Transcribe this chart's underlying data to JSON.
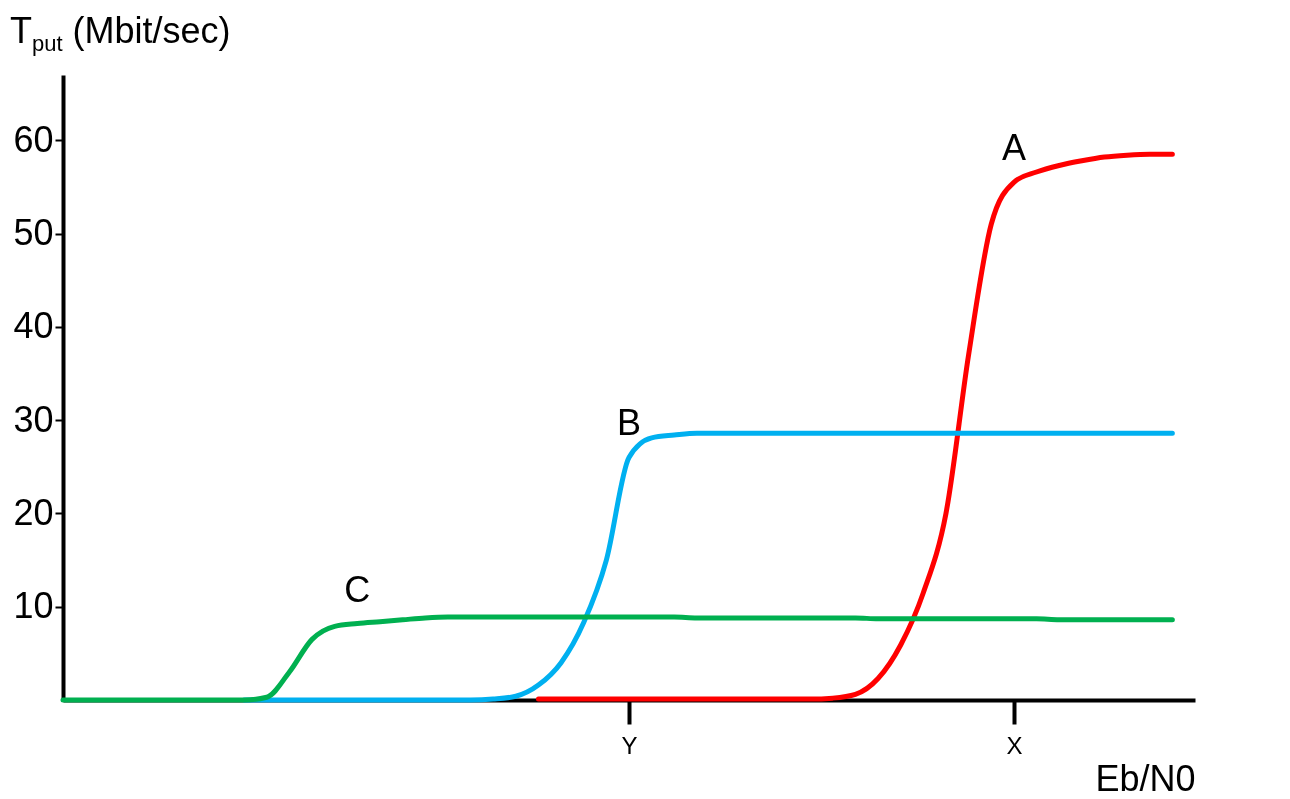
{
  "chart_data": {
    "type": "line",
    "xlabel": "Eb/N0",
    "ylabel": "T$_{put}$ (Mbit/sec)",
    "categories": [
      null,
      null,
      null,
      null,
      null,
      null,
      null,
      null,
      null,
      null,
      null,
      null,
      null,
      null,
      null,
      null,
      null,
      null,
      null,
      null,
      null,
      null,
      null,
      null,
      null,
      "Y",
      null,
      null,
      null,
      null,
      null,
      null,
      null,
      null,
      null,
      null,
      null,
      null,
      null,
      null,
      null,
      null,
      "X",
      null,
      null,
      null,
      null,
      null,
      null,
      null,
      null
    ],
    "ylim": [
      0,
      67
    ],
    "yticks": [
      10,
      20,
      30,
      40,
      50,
      60
    ],
    "grid": false,
    "legend": false,
    "marker": "none",
    "line_style": "solid",
    "series": [
      {
        "name": "A",
        "color": "#ff0000",
        "values": [
          null,
          null,
          null,
          null,
          null,
          null,
          null,
          null,
          null,
          null,
          null,
          null,
          null,
          null,
          null,
          null,
          null,
          null,
          null,
          null,
          null,
          0.1,
          0.1,
          0.1,
          0.1,
          0.1,
          0.1,
          0.1,
          0.1,
          0.1,
          0.1,
          0.1,
          0.1,
          0.1,
          0.2,
          0.6,
          2.3,
          5.9,
          11.5,
          20,
          37,
          51,
          55.5,
          56.6,
          57.3,
          57.8,
          58.2,
          58.4,
          58.5,
          58.5,
          null
        ]
      },
      {
        "name": "B",
        "color": "#00b0f0",
        "values": [
          null,
          null,
          null,
          null,
          null,
          null,
          null,
          null,
          0,
          0,
          0,
          0,
          0,
          0,
          0,
          0,
          0,
          0,
          0,
          0.1,
          0.4,
          1.6,
          4,
          8.3,
          15,
          26,
          28.1,
          28.4,
          28.6,
          28.6,
          28.6,
          28.6,
          28.6,
          28.6,
          28.6,
          28.6,
          28.6,
          28.6,
          28.6,
          28.6,
          28.6,
          28.6,
          28.6,
          28.6,
          28.6,
          28.6,
          28.6,
          28.6,
          28.6,
          28.6,
          null
        ]
      },
      {
        "name": "C",
        "color": "#00b050",
        "values": [
          0,
          0,
          0,
          0,
          0,
          0,
          0,
          0,
          0,
          0.3,
          3,
          6.5,
          7.9,
          8.2,
          8.4,
          8.6,
          8.8,
          8.9,
          8.9,
          8.9,
          8.9,
          8.9,
          8.9,
          8.9,
          8.9,
          8.9,
          8.9,
          8.9,
          8.8,
          8.8,
          8.8,
          8.8,
          8.8,
          8.8,
          8.8,
          8.8,
          8.7,
          8.7,
          8.7,
          8.7,
          8.7,
          8.7,
          8.7,
          8.7,
          8.6,
          8.6,
          8.6,
          8.6,
          8.6,
          8.6,
          null
        ]
      }
    ]
  }
}
